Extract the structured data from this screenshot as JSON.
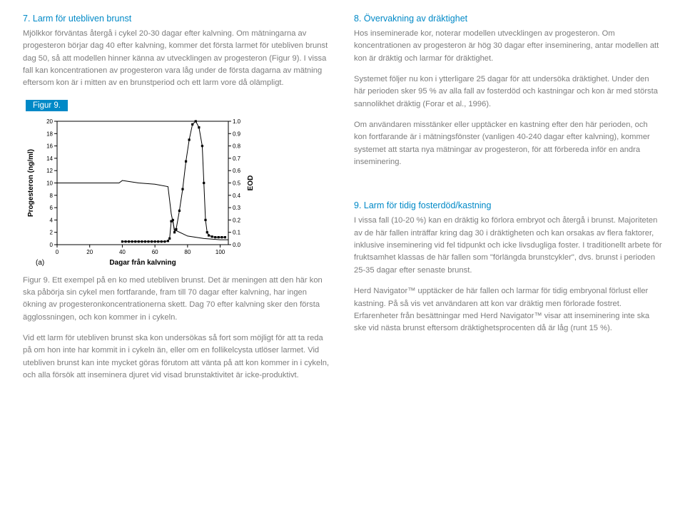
{
  "left": {
    "section7": {
      "heading": "7. Larm för utebliven brunst",
      "p1": "Mjölkkor förväntas återgå i cykel 20-30 dagar efter kalvning. Om mätningarna av progesteron börjar dag 40 efter kalvning, kommer det första larmet för utebliven brunst dag 50, så att modellen hinner känna av utvecklingen av progesteron (Figur 9). I vissa fall kan koncentrationen av progesteron vara låg under de första dagarna av mätning eftersom kon är i mitten av en brunstperiod och ett larm vore då olämpligt."
    },
    "figure_tag": "Figur 9.",
    "chart": {
      "type": "line-dual-axis",
      "panel_label": "(a)",
      "xlabel": "Dagar från kalvning",
      "ylabel_left": "Progesteron (ng/ml)",
      "ylabel_right": "EOD",
      "x_ticks": [
        0,
        20,
        40,
        60,
        80,
        100
      ],
      "y_left_ticks": [
        0,
        2,
        4,
        6,
        8,
        10,
        12,
        14,
        16,
        18,
        20
      ],
      "y_right_ticks": [
        0.0,
        0.1,
        0.2,
        0.3,
        0.4,
        0.5,
        0.6,
        0.7,
        0.8,
        0.9,
        1.0
      ],
      "xlim": [
        0,
        105
      ],
      "ylim_left": [
        0,
        20
      ],
      "ylim_right": [
        0,
        1.0
      ],
      "background_color": "#ffffff",
      "axis_color": "#000000",
      "marker_color": "#000000",
      "marker_style": "square",
      "marker_size": 3.2,
      "line_color": "#000000",
      "line_width": 1.0,
      "label_fontsize": 10,
      "tick_fontsize": 8,
      "progesteron_points": [
        [
          40,
          0.5
        ],
        [
          42,
          0.5
        ],
        [
          44,
          0.5
        ],
        [
          46,
          0.5
        ],
        [
          48,
          0.5
        ],
        [
          50,
          0.5
        ],
        [
          52,
          0.5
        ],
        [
          54,
          0.5
        ],
        [
          56,
          0.5
        ],
        [
          58,
          0.5
        ],
        [
          60,
          0.5
        ],
        [
          62,
          0.5
        ],
        [
          64,
          0.5
        ],
        [
          66,
          0.5
        ],
        [
          68,
          0.6
        ],
        [
          69,
          1.0
        ],
        [
          70,
          3.8
        ],
        [
          71,
          4.0
        ],
        [
          72,
          2.0
        ],
        [
          73,
          2.5
        ],
        [
          75,
          5.5
        ],
        [
          77,
          9.0
        ],
        [
          79,
          13.5
        ],
        [
          81,
          17.0
        ],
        [
          83,
          19.5
        ],
        [
          85,
          20.0
        ],
        [
          87,
          19.0
        ],
        [
          89,
          16.0
        ],
        [
          90,
          10.0
        ],
        [
          91,
          4.0
        ],
        [
          92,
          2.0
        ],
        [
          93,
          1.5
        ],
        [
          95,
          1.3
        ],
        [
          97,
          1.2
        ],
        [
          99,
          1.2
        ],
        [
          101,
          1.2
        ],
        [
          103,
          1.2
        ]
      ],
      "eod_line": [
        [
          0,
          0.5
        ],
        [
          38,
          0.5
        ],
        [
          40,
          0.52
        ],
        [
          50,
          0.5
        ],
        [
          60,
          0.49
        ],
        [
          68,
          0.47
        ],
        [
          70,
          0.25
        ],
        [
          72,
          0.12
        ],
        [
          80,
          0.07
        ],
        [
          90,
          0.05
        ],
        [
          100,
          0.04
        ],
        [
          105,
          0.04
        ]
      ]
    },
    "caption": {
      "p1": "Figur 9. Ett exempel på en ko med utebliven brunst. Det är meningen att den här kon ska påbörja sin cykel men fortfarande, fram till 70 dagar efter kalvning, har ingen ökning av progesteronkoncentrationerna skett. Dag 70 efter kalvning sker den första ägglossningen, och kon kommer in i cykeln.",
      "p2": "Vid ett larm för utebliven brunst ska kon undersökas så fort som möjligt för att ta reda på om hon inte har kommit in i cykeln än, eller om en follikelcysta utlöser larmet. Vid utebliven brunst kan inte mycket göras förutom att vänta på att kon kommer in i cykeln, och alla försök att inseminera djuret vid visad brunstaktivitet är icke-produktivt."
    }
  },
  "right": {
    "section8": {
      "heading": "8. Övervakning av dräktighet",
      "p1": "Hos inseminerade kor, noterar modellen utvecklingen av progesteron. Om koncentrationen av progesteron är hög 30 dagar efter inseminering, antar modellen att kon är dräktig och larmar för dräktighet.",
      "p2": "Systemet följer nu kon i ytterligare 25 dagar för att undersöka dräktighet. Under den här perioden sker 95 % av alla fall av fosterdöd och kastningar och kon är med största sannolikhet dräktig (Forar et al., 1996).",
      "p3": "Om användaren misstänker eller upptäcker en kastning efter den här perioden, och kon fortfarande är i mätningsfönster (vanligen 40-240 dagar efter kalvning), kommer systemet att starta nya mätningar av progesteron, för att förbereda inför en andra inseminering."
    },
    "section9": {
      "heading": "9. Larm för tidig fosterdöd/kastning",
      "p1": "I vissa fall (10-20 %) kan en dräktig ko förlora embryot och återgå i brunst. Majoriteten av de här fallen inträffar kring dag 30 i dräktigheten och kan orsakas av flera faktorer, inklusive inseminering vid fel tidpunkt och icke livsdugliga foster. I traditionellt arbete för fruktsamhet klassas de här fallen som \"förlängda brunstcykler\", dvs. brunst i perioden 25-35 dagar efter senaste brunst.",
      "p2": "Herd Navigator™ upptäcker de här fallen och larmar för tidig embryonal förlust eller kastning. På så vis vet användaren att kon var dräktig men förlorade fostret. Erfarenheter från besättningar med Herd Navigator™ visar att inseminering inte ska ske vid nästa brunst eftersom dräktighetsprocenten då är låg (runt 15 %)."
    }
  }
}
